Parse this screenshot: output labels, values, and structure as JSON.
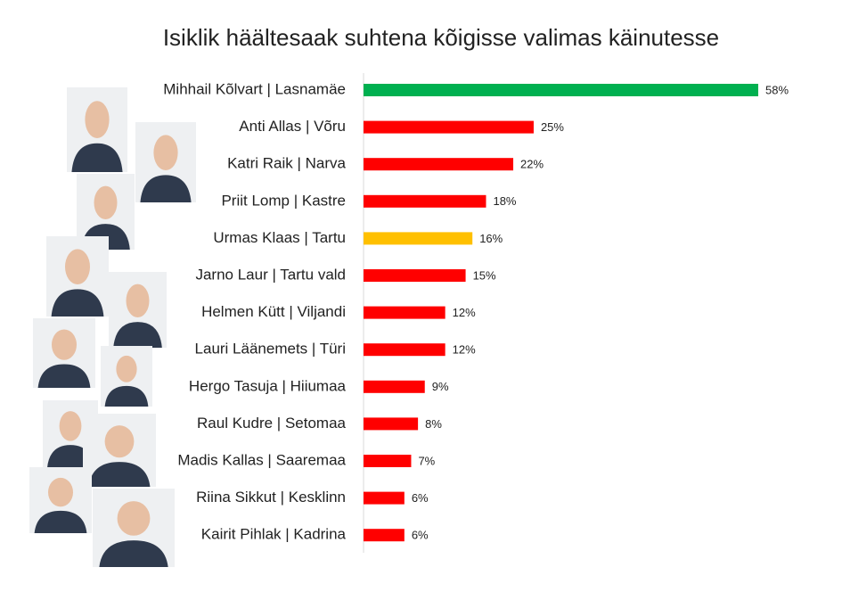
{
  "chart_data": {
    "type": "barh",
    "title": "Isiklik häältesaak suhtena kõigisse valimas käinutesse",
    "categories": [
      "Mihhail Kõlvart | Lasnamäe",
      "Anti Allas | Võru",
      "Katri Raik | Narva",
      "Priit Lomp | Kastre",
      "Urmas Klaas | Tartu",
      "Jarno Laur | Tartu vald",
      "Helmen Kütt  | Viljandi",
      "Lauri Läänemets | Türi",
      "Hergo Tasuja | Hiiumaa",
      "Raul Kudre | Setomaa",
      "Madis Kallas | Saaremaa",
      "Riina Sikkut | Kesklinn",
      "Kairit Pihlak | Kadrina"
    ],
    "values": [
      58,
      25,
      22,
      18,
      16,
      15,
      12,
      12,
      9,
      8,
      7,
      6,
      6
    ],
    "value_labels": [
      "58%",
      "25%",
      "22%",
      "18%",
      "16%",
      "15%",
      "12%",
      "12%",
      "9%",
      "8%",
      "7%",
      "6%",
      "6%"
    ],
    "colors": [
      "#00b050",
      "#ff0000",
      "#ff0000",
      "#ff0000",
      "#ffc000",
      "#ff0000",
      "#ff0000",
      "#ff0000",
      "#ff0000",
      "#ff0000",
      "#ff0000",
      "#ff0000",
      "#ff0000"
    ]
  }
}
